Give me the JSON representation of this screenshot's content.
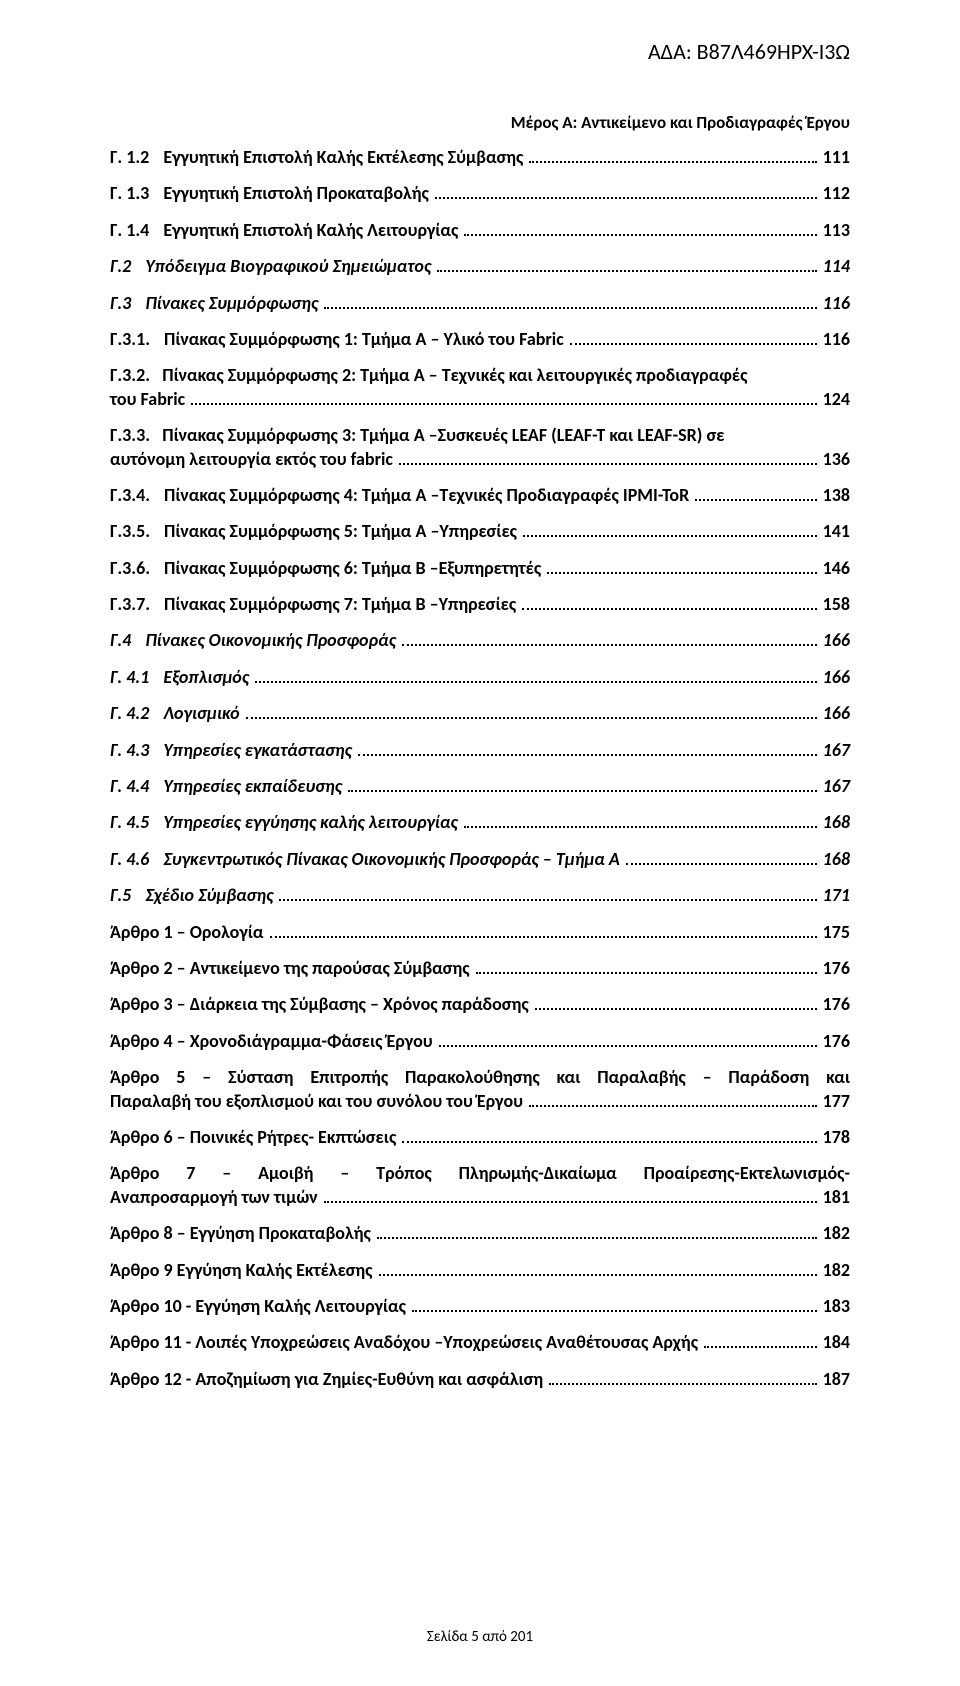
{
  "header_id": "ΑΔΑ: Β87Λ469ΗΡΧ-Ι3Ω",
  "header_sub": "Μέρος Α: Αντικείμενο και Προδιαγραφές Έργου",
  "footer": "Σελίδα 5 από 201",
  "toc": [
    {
      "label": "Γ. 1.2",
      "title": "Εγγυητική Επιστολή Καλής Εκτέλεσης Σύμβασης",
      "page": "111"
    },
    {
      "label": "Γ. 1.3",
      "title": "Εγγυητική Επιστολή Προκαταβολής",
      "page": "112"
    },
    {
      "label": "Γ. 1.4",
      "title": "Εγγυητική Επιστολή Καλής Λειτουργίας",
      "page": "113"
    },
    {
      "label": "Γ.2",
      "title": "Υπόδειγμα Βιογραφικού Σημειώματος",
      "page": "114",
      "italic": true
    },
    {
      "label": "Γ.3",
      "title": "Πίνακες Συμμόρφωσης",
      "page": "116",
      "italic": true
    },
    {
      "label": "Γ.3.1.",
      "title": "Πίνακας Συμμόρφωσης 1: Τμήμα Α – Υλικό του Fabric",
      "page": "116"
    },
    {
      "label": "Γ.3.2.",
      "multiline": true,
      "line1": "Πίνακας Συμμόρφωσης 2: Τμήμα Α – Τεχνικές και λειτουργικές προδιαγραφές",
      "line2": "του Fabric",
      "page": "124"
    },
    {
      "label": "Γ.3.3.",
      "multiline": true,
      "line1": "Πίνακας Συμμόρφωσης 3: Τμήμα Α –Συσκευές LEAF (LEAF-T και LEAF-SR) σε",
      "line2": "αυτόνομη λειτουργία εκτός του fabric",
      "page": "136"
    },
    {
      "label": "Γ.3.4.",
      "title": "Πίνακας Συμμόρφωσης 4: Τμήμα Α –Τεχνικές Προδιαγραφές IPMI-ToR",
      "page": "138"
    },
    {
      "label": "Γ.3.5.",
      "title": "Πίνακας Συμμόρφωσης 5: Τμήμα Α –Υπηρεσίες",
      "page": "141"
    },
    {
      "label": "Γ.3.6.",
      "title": "Πίνακας Συμμόρφωσης 6: Τμήμα Β –Εξυπηρετητές",
      "page": "146"
    },
    {
      "label": "Γ.3.7.",
      "title": "Πίνακας Συμμόρφωσης 7: Τμήμα Β –Υπηρεσίες",
      "page": "158"
    },
    {
      "label": "Γ.4",
      "title": "Πίνακες Οικονομικής Προσφοράς",
      "page": "166",
      "italic": true
    },
    {
      "label": "Γ. 4.1",
      "title": "Εξοπλισμός",
      "page": "166",
      "italic": true
    },
    {
      "label": "Γ. 4.2",
      "title": "Λογισμικό",
      "page": "166",
      "italic": true
    },
    {
      "label": "Γ. 4.3",
      "title": "Υπηρεσίες εγκατάστασης",
      "page": "167",
      "italic": true
    },
    {
      "label": "Γ. 4.4",
      "title": "Υπηρεσίες εκπαίδευσης",
      "page": "167",
      "italic": true
    },
    {
      "label": "Γ. 4.5",
      "title": "Υπηρεσίες εγγύησης καλής λειτουργίας",
      "page": "168",
      "italic": true
    },
    {
      "label": "Γ. 4.6",
      "title": "Συγκεντρωτικός Πίνακας Οικονομικής Προσφοράς – Τμήμα Α",
      "page": "168",
      "italic": true
    },
    {
      "label": "Γ.5",
      "title": "Σχέδιο Σύμβασης",
      "page": "171",
      "italic": true
    },
    {
      "label": "",
      "title": "Άρθρο 1 – Ορολογία",
      "page": "175",
      "noindent": true
    },
    {
      "label": "",
      "title": "Άρθρο 2 – Αντικείμενο της παρούσας Σύμβασης",
      "page": "176",
      "noindent": true
    },
    {
      "label": "",
      "title": "Άρθρο 3 – Διάρκεια της Σύμβασης – Χρόνος παράδοσης",
      "page": "176",
      "noindent": true
    },
    {
      "label": "",
      "title": "Άρθρο 4 – Χρονοδιάγραμμα-Φάσεις Έργου",
      "page": "176",
      "noindent": true
    },
    {
      "label": "",
      "multiline": true,
      "noindent": true,
      "line1": "Άρθρο 5 – Σύσταση Επιτροπής Παρακολούθησης και Παραλαβής – Παράδοση και",
      "line2": "Παραλαβή του εξοπλισμού και του συνόλου του Έργου",
      "page": "177",
      "justify": true
    },
    {
      "label": "",
      "title": "Άρθρο 6 – Ποινικές Ρήτρες- Εκπτώσεις",
      "page": "178",
      "noindent": true
    },
    {
      "label": "",
      "multiline": true,
      "noindent": true,
      "line1": "Άρθρο 7 – Αμοιβή – Τρόπος Πληρωμής-Δικαίωμα Προαίρεσης-Εκτελωνισμός-",
      "line2": "Αναπροσαρμογή των τιμών",
      "page": "181",
      "justify": true
    },
    {
      "label": "",
      "title": "Άρθρο 8 – Εγγύηση Προκαταβολής",
      "page": "182",
      "noindent": true
    },
    {
      "label": "",
      "title": "Άρθρο 9 Εγγύηση Καλής Εκτέλεσης",
      "page": "182",
      "noindent": true
    },
    {
      "label": "",
      "title": "Άρθρο 10 - Εγγύηση Καλής Λειτουργίας",
      "page": "183",
      "noindent": true
    },
    {
      "label": "",
      "title": "Άρθρο 11 -  Λοιπές Υποχρεώσεις Αναδόχου –Υποχρεώσεις Αναθέτουσας Αρχής",
      "page": "184",
      "noindent": true
    },
    {
      "label": "",
      "title": "Άρθρο 12 - Αποζημίωση για Ζημίες-Ευθύνη και ασφάλιση",
      "page": "187",
      "noindent": true
    }
  ]
}
